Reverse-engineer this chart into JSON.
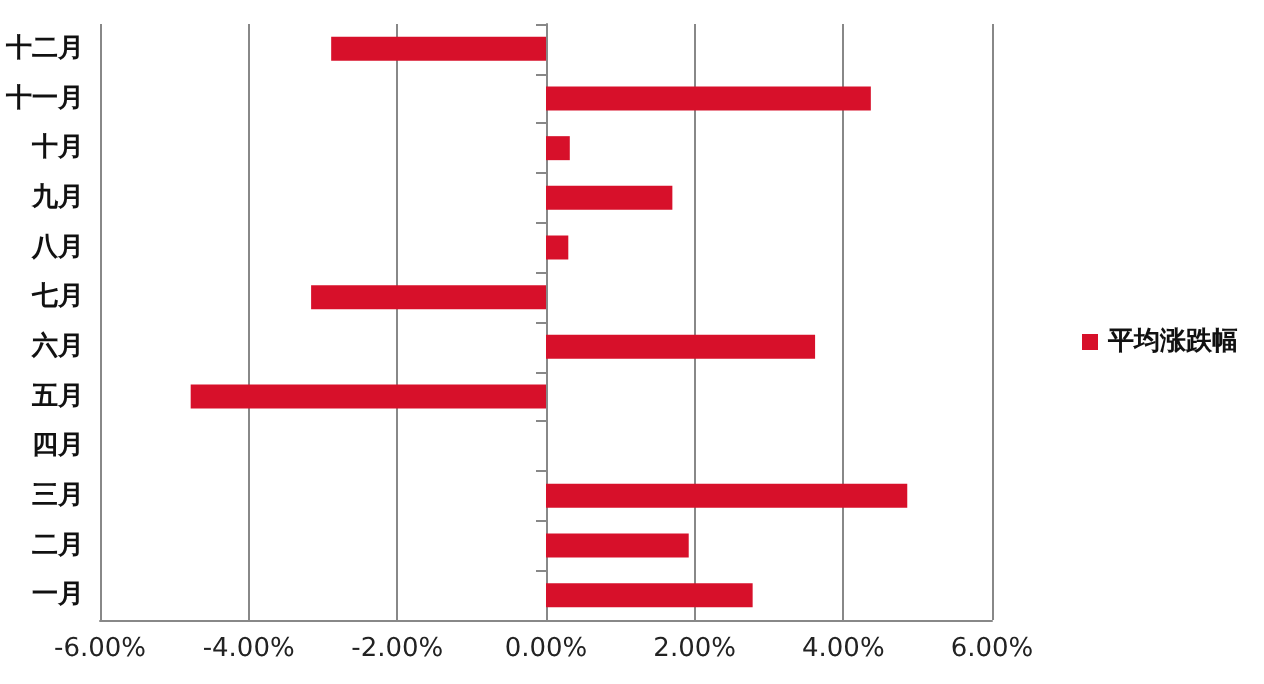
{
  "chart_data": {
    "type": "bar",
    "orientation": "horizontal",
    "categories": [
      "十二月",
      "十一月",
      "十月",
      "九月",
      "八月",
      "七月",
      "六月",
      "五月",
      "四月",
      "三月",
      "二月",
      "一月"
    ],
    "series": [
      {
        "name": "平均涨跌幅",
        "color": "#d7102a",
        "values": [
          -2.89,
          4.37,
          0.32,
          1.7,
          0.3,
          -3.16,
          3.62,
          -4.78,
          0,
          4.86,
          1.92,
          2.78
        ]
      }
    ],
    "xlim": [
      -6,
      6
    ],
    "xticks": [
      {
        "value": -6,
        "label": "-6.00%"
      },
      {
        "value": -4,
        "label": "-4.00%"
      },
      {
        "value": -2,
        "label": "-2.00%"
      },
      {
        "value": 0,
        "label": "0.00%"
      },
      {
        "value": 2,
        "label": "2.00%"
      },
      {
        "value": 4,
        "label": "4.00%"
      },
      {
        "value": 6,
        "label": "6.00%"
      }
    ],
    "grid": "x",
    "legend": "right"
  }
}
